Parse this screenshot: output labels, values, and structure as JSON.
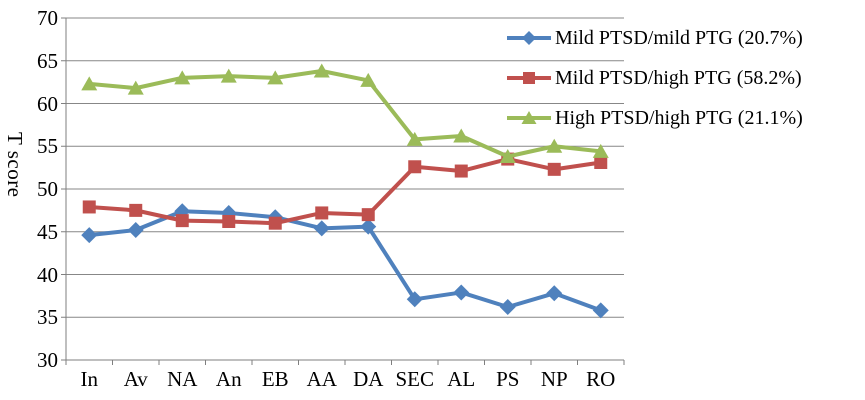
{
  "figure": {
    "background": "#FFFFFF",
    "text_color": "#000000"
  },
  "y_axis": {
    "title": "T score",
    "min": 30,
    "max": 70,
    "step": 5,
    "tick_labels": [
      "30",
      "35",
      "40",
      "45",
      "50",
      "55",
      "60",
      "65",
      "70"
    ]
  },
  "x_axis": {
    "categories": [
      "In",
      "Av",
      "NA",
      "An",
      "EB",
      "AA",
      "DA",
      "SEC",
      "AL",
      "PS",
      "NP",
      "RO"
    ]
  },
  "colors": {
    "gridline": "#878787",
    "axis": "#7F7F7F",
    "series_blue": "#4F81BD",
    "series_red": "#C0504D",
    "series_green": "#9BBB59"
  },
  "chart_data": {
    "type": "line",
    "title": "",
    "xlabel": "",
    "ylabel": "T score",
    "ylim": [
      30,
      70
    ],
    "ystep": 5,
    "grid": "horizontal",
    "legend_position": "top-right-inside",
    "categories": [
      "In",
      "Av",
      "NA",
      "An",
      "EB",
      "AA",
      "DA",
      "SEC",
      "AL",
      "PS",
      "NP",
      "RO"
    ],
    "series": [
      {
        "name": "Mild PTSD/mild PTG (20.7%)",
        "marker": "diamond",
        "color": "#4F81BD",
        "values": [
          44.6,
          45.2,
          47.4,
          47.2,
          46.7,
          45.4,
          45.6,
          37.1,
          37.9,
          36.2,
          37.8,
          35.8
        ]
      },
      {
        "name": "Mild PTSD/high PTG (58.2%)",
        "marker": "square",
        "color": "#C0504D",
        "values": [
          47.9,
          47.5,
          46.3,
          46.2,
          46.0,
          47.2,
          47.0,
          52.6,
          52.1,
          53.5,
          52.3,
          53.1
        ]
      },
      {
        "name": "High PTSD/high PTG (21.1%)",
        "marker": "triangle",
        "color": "#9BBB59",
        "values": [
          62.3,
          61.8,
          63.0,
          63.2,
          63.0,
          63.8,
          62.7,
          55.8,
          56.2,
          53.8,
          55.0,
          54.4
        ]
      }
    ]
  }
}
